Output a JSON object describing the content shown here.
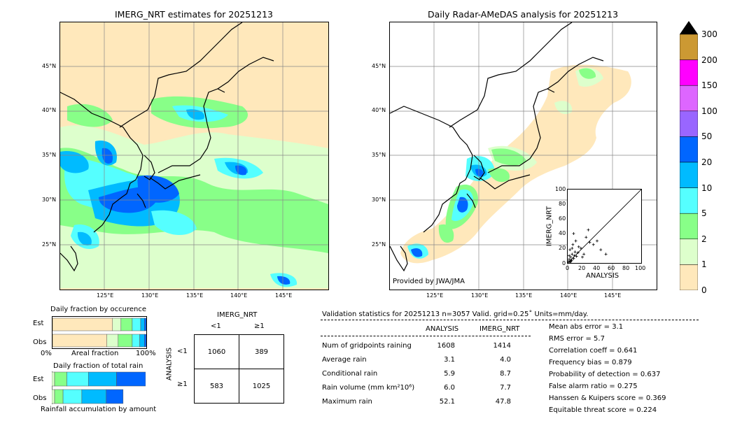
{
  "left_map": {
    "title": "IMERG_NRT estimates for 20251213",
    "lat_labels": [
      "45°N",
      "40°N",
      "35°N",
      "30°N",
      "25°N"
    ],
    "lon_labels": [
      "125°E",
      "130°E",
      "135°E",
      "140°E",
      "145°E"
    ]
  },
  "right_map": {
    "title": "Daily Radar-AMeDAS analysis for 20251213",
    "lat_labels": [
      "45°N",
      "40°N",
      "35°N",
      "30°N",
      "25°N"
    ],
    "lon_labels": [
      "125°E",
      "130°E",
      "135°E",
      "140°E",
      "145°E"
    ],
    "credit": "Provided by JWA/JMA"
  },
  "colorbar": {
    "labels": [
      "300",
      "200",
      "150",
      "100",
      "50",
      "20",
      "10",
      "5",
      "2",
      "1",
      "0"
    ],
    "colors": [
      "#cc9933",
      "#ff00ff",
      "#dd66ff",
      "#9966ff",
      "#0066ff",
      "#00bbff",
      "#55ffff",
      "#88ff88",
      "#ddffcc",
      "#ffe8bb"
    ]
  },
  "scatter_inset": {
    "xlabel": "ANALYSIS",
    "ylabel": "IMERG_NRT",
    "ticks": [
      "0",
      "20",
      "40",
      "60",
      "80",
      "100"
    ]
  },
  "occurrence": {
    "title": "Daily fraction by occurence",
    "row_labels": [
      "Est",
      "Obs"
    ],
    "axis_left": "0%",
    "axis_mid": "Areal fraction",
    "axis_right": "100%"
  },
  "total_rain": {
    "title": "Daily fraction of total rain",
    "row_labels": [
      "Est",
      "Obs"
    ],
    "caption": "Rainfall accumulation by amount"
  },
  "contingency": {
    "col_header": "IMERG_NRT",
    "col_labels": [
      "<1",
      "≥1"
    ],
    "row_header": "ANALYSIS",
    "row_labels": [
      "<1",
      "≥1"
    ],
    "cells": [
      [
        "1060",
        "389"
      ],
      [
        "583",
        "1025"
      ]
    ]
  },
  "validation": {
    "header": "Validation statistics for 20251213  n=3057 Valid.  grid=0.25˚ Units=mm/day.",
    "col_analysis": "ANALYSIS",
    "col_imerg": "IMERG_NRT",
    "rows": [
      {
        "label": "Num of gridpoints raining",
        "analysis": "1608",
        "imerg": "1414"
      },
      {
        "label": "Average rain",
        "analysis": "3.1",
        "imerg": "4.0"
      },
      {
        "label": "Conditional rain",
        "analysis": "5.9",
        "imerg": "8.7"
      },
      {
        "label": "Rain volume (mm km²10⁶)",
        "analysis": "6.0",
        "imerg": "7.7"
      },
      {
        "label": "Maximum rain",
        "analysis": "52.1",
        "imerg": "47.8"
      }
    ],
    "scores": [
      "Mean abs error =    3.1",
      "RMS error =    5.7",
      "Correlation coeff =  0.641",
      "Frequency bias =  0.879",
      "Probability of detection =  0.637",
      "False alarm ratio =  0.275",
      "Hanssen & Kuipers score =  0.369",
      "Equitable threat score =  0.224"
    ]
  },
  "chart_data": [
    {
      "type": "heatmap",
      "title": "IMERG_NRT estimates for 20251213",
      "xlabel": "",
      "ylabel": "",
      "xlim": [
        120,
        149
      ],
      "ylim": [
        20,
        50
      ],
      "units": "mm/day"
    },
    {
      "type": "heatmap",
      "title": "Daily Radar-AMeDAS analysis for 20251213",
      "xlabel": "",
      "ylabel": "",
      "xlim": [
        120,
        149
      ],
      "ylim": [
        20,
        50
      ],
      "units": "mm/day"
    },
    {
      "type": "scatter",
      "xlabel": "ANALYSIS",
      "ylabel": "IMERG_NRT",
      "xlim": [
        0,
        100
      ],
      "ylim": [
        0,
        100
      ],
      "x": [
        1,
        2,
        3,
        4,
        5,
        6,
        8,
        10,
        12,
        15,
        3,
        5,
        7,
        9,
        11,
        14,
        18,
        22,
        25,
        30,
        2,
        4,
        6,
        8,
        20,
        28,
        35,
        40,
        45,
        52
      ],
      "y": [
        2,
        5,
        1,
        8,
        3,
        12,
        6,
        15,
        9,
        22,
        18,
        4,
        25,
        10,
        30,
        14,
        20,
        12,
        35,
        28,
        10,
        2,
        20,
        40,
        8,
        45,
        25,
        30,
        18,
        12
      ]
    },
    {
      "type": "bar",
      "title": "Daily fraction by occurence",
      "categories": [
        "Est",
        "Obs"
      ],
      "series": [
        {
          "values": [
            0.64,
            0.58
          ]
        },
        {
          "values": [
            0.09,
            0.12
          ]
        },
        {
          "values": [
            0.12,
            0.15
          ]
        },
        {
          "values": [
            0.09,
            0.08
          ]
        },
        {
          "values": [
            0.04,
            0.05
          ]
        },
        {
          "values": [
            0.02,
            0.02
          ]
        }
      ]
    },
    {
      "type": "bar",
      "title": "Daily fraction of total rain",
      "categories": [
        "Est",
        "Obs"
      ],
      "series": [
        {
          "values": [
            0.03,
            0.03
          ]
        },
        {
          "values": [
            0.13,
            0.09
          ]
        },
        {
          "values": [
            0.23,
            0.2
          ]
        },
        {
          "values": [
            0.3,
            0.26
          ]
        },
        {
          "values": [
            0.31,
            0.18
          ]
        }
      ]
    }
  ]
}
